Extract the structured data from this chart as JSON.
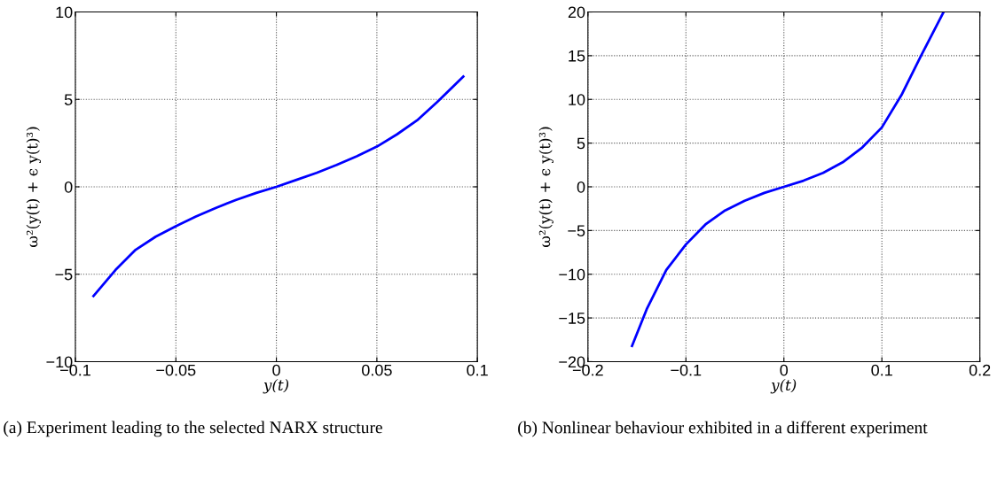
{
  "chart_data": [
    {
      "type": "line",
      "xlabel": "y(t)",
      "ylabel": "ω²(y(t) + ϵ y(t)³)",
      "annotations": [
        "(a) Experiment leading to the selected NARX structure"
      ],
      "x": [
        -0.091,
        -0.08,
        -0.07,
        -0.06,
        -0.05,
        -0.04,
        -0.03,
        -0.02,
        -0.01,
        0,
        0.01,
        0.02,
        0.03,
        0.04,
        0.05,
        0.06,
        0.07,
        0.08,
        0.093
      ],
      "series": [
        {
          "color": "#0000ff",
          "values": [
            -6.25,
            -4.75,
            -3.6,
            -2.85,
            -2.25,
            -1.7,
            -1.2,
            -0.75,
            -0.35,
            0,
            0.4,
            0.8,
            1.25,
            1.75,
            2.3,
            3.0,
            3.8,
            4.85,
            6.3
          ]
        }
      ],
      "xlim": [
        -0.1,
        0.1
      ],
      "xticks": [
        {
          "value": -0.1,
          "label": "−0.1"
        },
        {
          "value": -0.05,
          "label": "−0.05"
        },
        0,
        0.05,
        0.1
      ],
      "ylim": [
        -10,
        10
      ],
      "yticks": [
        {
          "value": -10,
          "label": "−10"
        },
        {
          "value": -5,
          "label": "−5"
        },
        0,
        5,
        10
      ],
      "grid": true,
      "line_style": "solid",
      "legend": false
    },
    {
      "type": "line",
      "xlabel": "y(t)",
      "ylabel": "ω²(y(t) + ϵ y(t)³)",
      "annotations": [
        "(b) Nonlinear behaviour exhibited in a different experiment"
      ],
      "x": [
        -0.155,
        -0.14,
        -0.12,
        -0.1,
        -0.08,
        -0.06,
        -0.04,
        -0.02,
        0,
        0.02,
        0.04,
        0.06,
        0.08,
        0.1,
        0.12,
        0.14,
        0.163
      ],
      "series": [
        {
          "color": "#0000ff",
          "values": [
            -18.2,
            -14,
            -9.5,
            -6.6,
            -4.3,
            -2.7,
            -1.6,
            -0.7,
            0,
            0.7,
            1.6,
            2.8,
            4.5,
            6.8,
            10.5,
            15,
            20
          ]
        }
      ],
      "xlim": [
        -0.2,
        0.2
      ],
      "xticks": [
        {
          "value": -0.2,
          "label": "−0.2"
        },
        {
          "value": -0.1,
          "label": "−0.1"
        },
        0,
        0.1,
        0.2
      ],
      "ylim": [
        -20,
        20
      ],
      "yticks": [
        {
          "value": -20,
          "label": "−20"
        },
        {
          "value": -15,
          "label": "−15"
        },
        {
          "value": -10,
          "label": "−10"
        },
        {
          "value": -5,
          "label": "−5"
        },
        0,
        5,
        10,
        15,
        20
      ],
      "grid": true,
      "line_style": "solid",
      "legend": false
    }
  ]
}
